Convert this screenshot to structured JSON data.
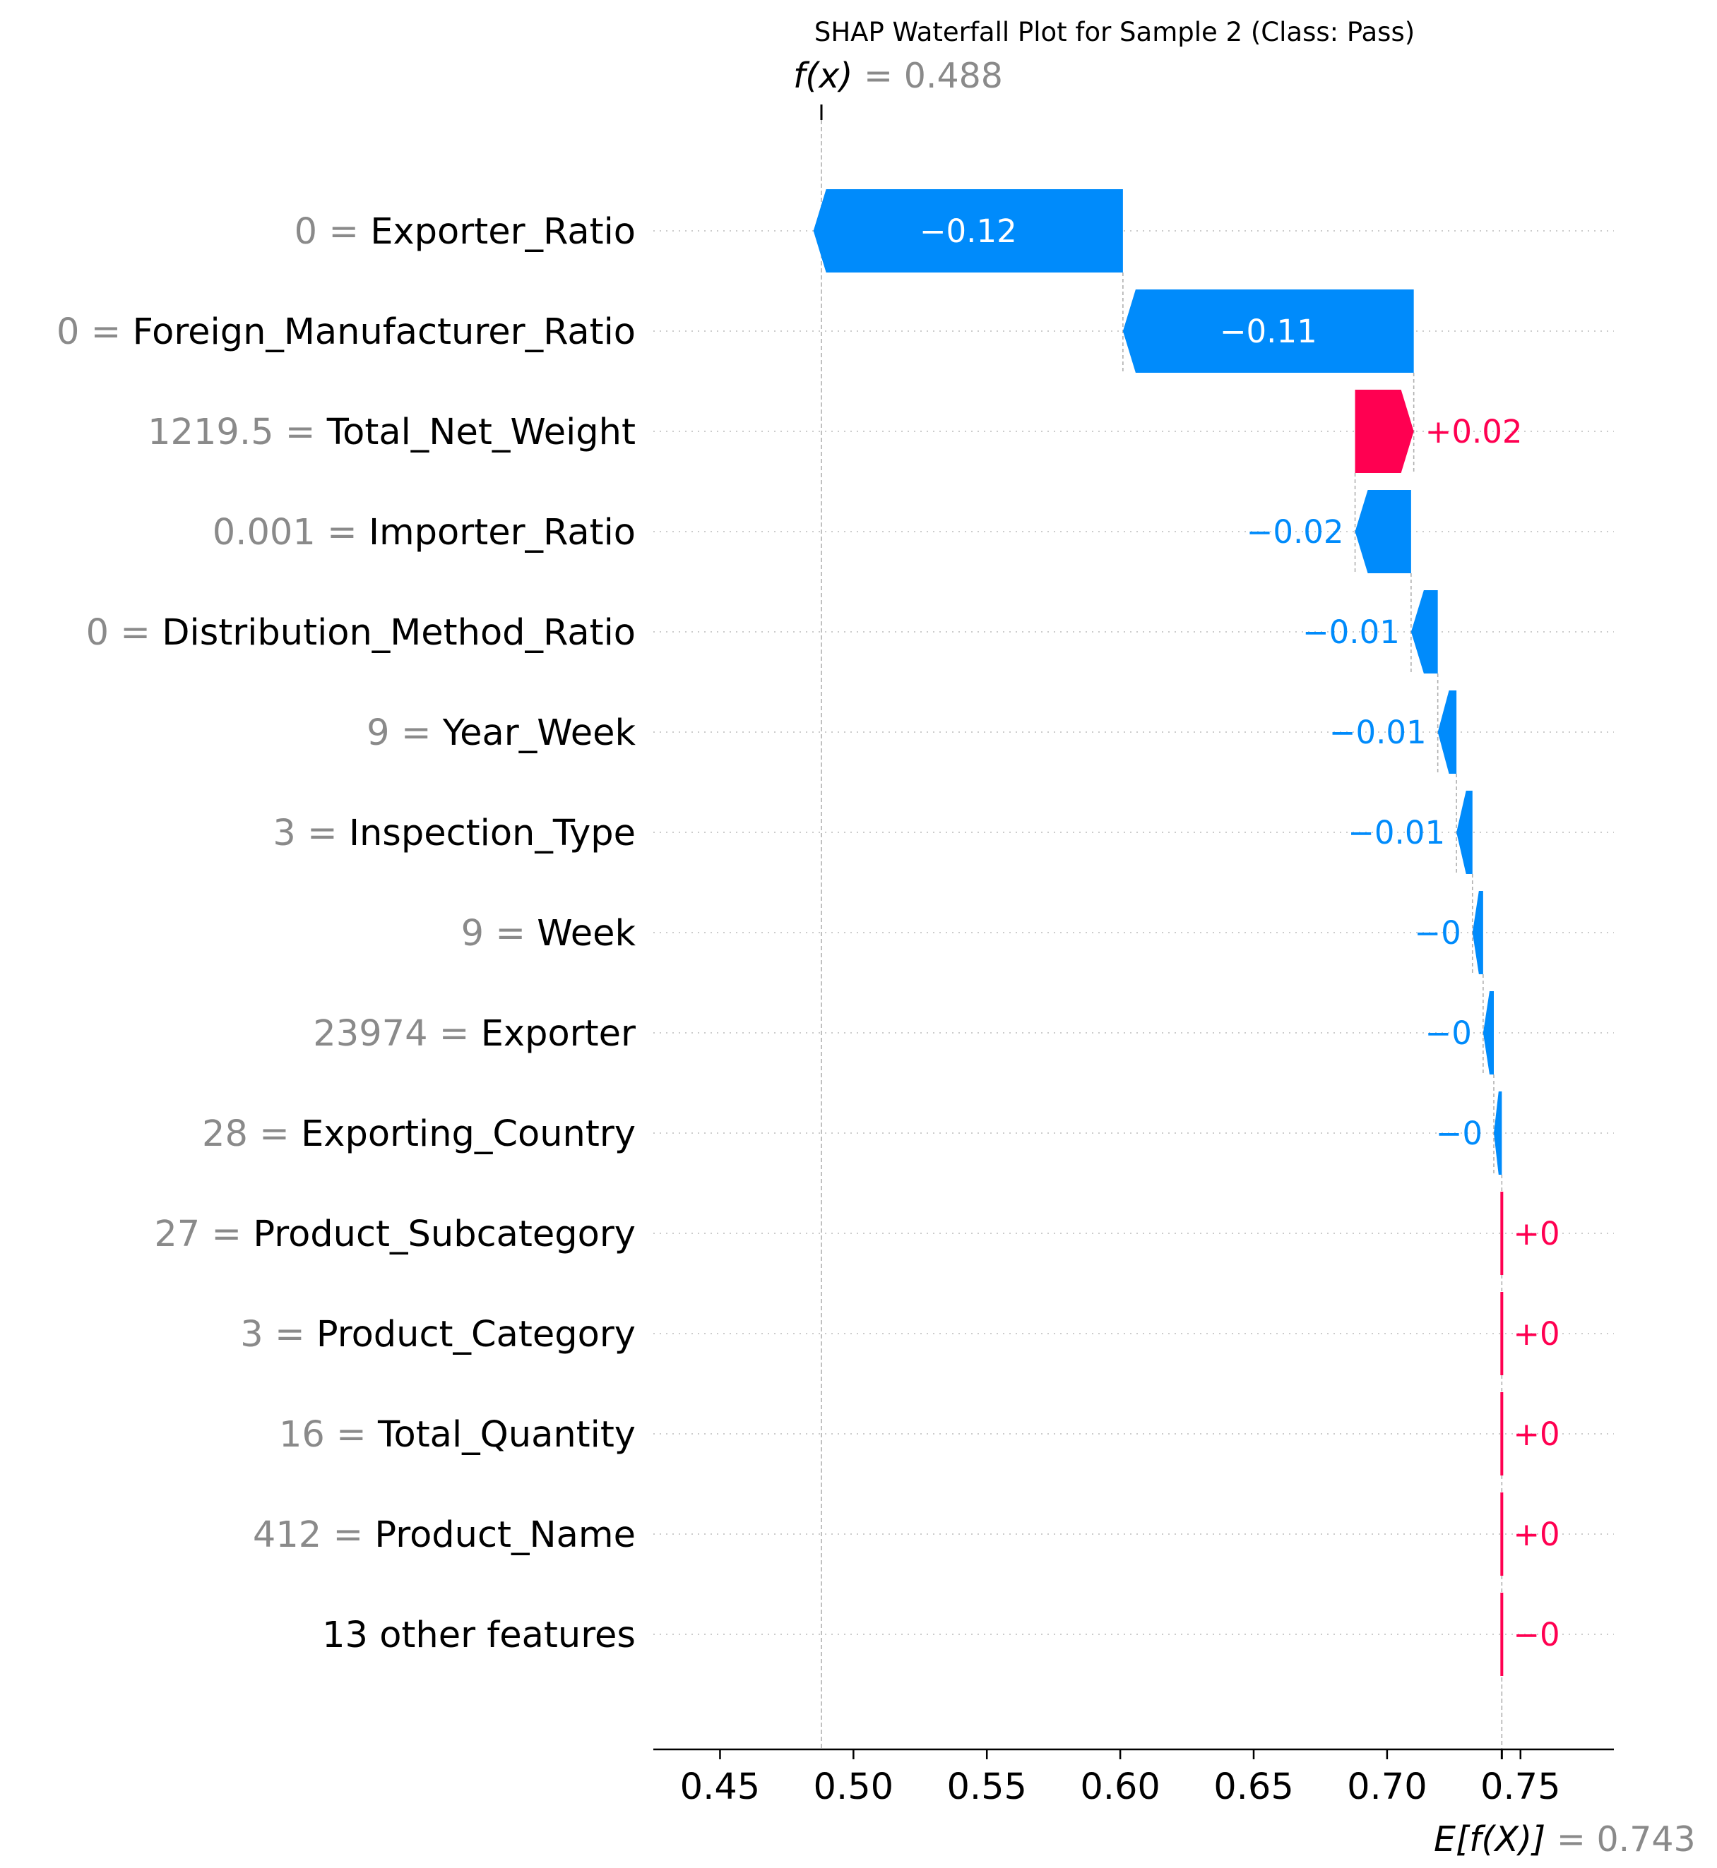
{
  "chart_data": {
    "type": "waterfall",
    "title": "SHAP Waterfall Plot for Sample 2 (Class: Pass)",
    "fx": {
      "label": "f(x)",
      "value": 0.488,
      "value_text": "0.488"
    },
    "efx": {
      "label": "E[f(X)]",
      "value": 0.743,
      "value_text": "0.743"
    },
    "xlim": [
      0.425,
      0.785
    ],
    "xticks": [
      {
        "value": 0.45,
        "label": "0.45"
      },
      {
        "value": 0.5,
        "label": "0.50"
      },
      {
        "value": 0.55,
        "label": "0.55"
      },
      {
        "value": 0.6,
        "label": "0.60"
      },
      {
        "value": 0.65,
        "label": "0.65"
      },
      {
        "value": 0.7,
        "label": "0.70"
      },
      {
        "value": 0.75,
        "label": "0.75"
      }
    ],
    "grid": "horizontal dotted per feature row",
    "colors": {
      "positive": "#ff0051",
      "negative": "#008bfb",
      "feature_value": "#8a8a8a",
      "dashed": "#b0b0b0"
    },
    "features": [
      {
        "name": "Exporter_Ratio",
        "value": "0",
        "shap": -0.116,
        "label": "−0.12"
      },
      {
        "name": "Foreign_Manufacturer_Ratio",
        "value": "0",
        "shap": -0.109,
        "label": "−0.11"
      },
      {
        "name": "Total_Net_Weight",
        "value": "1219.5",
        "shap": 0.022,
        "label": "+0.02"
      },
      {
        "name": "Importer_Ratio",
        "value": "0.001",
        "shap": -0.021,
        "label": "−0.02"
      },
      {
        "name": "Distribution_Method_Ratio",
        "value": "0",
        "shap": -0.01,
        "label": "−0.01"
      },
      {
        "name": "Year_Week",
        "value": "9",
        "shap": -0.007,
        "label": "−0.01"
      },
      {
        "name": "Inspection_Type",
        "value": "3",
        "shap": -0.006,
        "label": "−0.01"
      },
      {
        "name": "Week",
        "value": "9",
        "shap": -0.004,
        "label": "−0"
      },
      {
        "name": "Exporter",
        "value": "23974",
        "shap": -0.004,
        "label": "−0"
      },
      {
        "name": "Exporting_Country",
        "value": "28",
        "shap": -0.003,
        "label": "−0"
      },
      {
        "name": "Product_Subcategory",
        "value": "27",
        "shap": 0.0,
        "label": "+0"
      },
      {
        "name": "Product_Category",
        "value": "3",
        "shap": 0.0,
        "label": "+0"
      },
      {
        "name": "Total_Quantity",
        "value": "16",
        "shap": 0.0,
        "label": "+0"
      },
      {
        "name": "Product_Name",
        "value": "412",
        "shap": 0.0,
        "label": "+0"
      },
      {
        "name": "13 other features",
        "value": "",
        "shap": -0.0,
        "label": "−0"
      }
    ]
  }
}
